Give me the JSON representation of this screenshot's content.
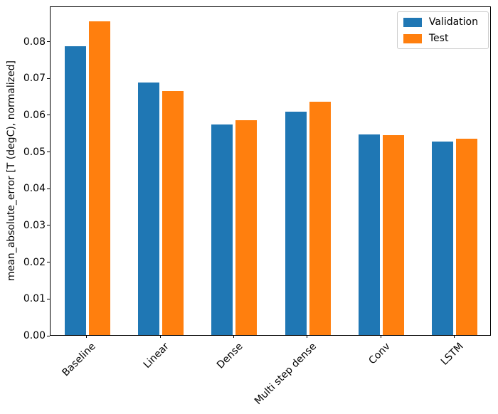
{
  "chart_data": {
    "type": "bar",
    "title": "",
    "xlabel": "",
    "ylabel": "mean_absolute_error [T (degC), normalized]",
    "categories": [
      "Baseline",
      "Linear",
      "Dense",
      "Multi step dense",
      "Conv",
      "LSTM"
    ],
    "series": [
      {
        "name": "Validation",
        "color": "#1f77b4",
        "values": [
          0.0786,
          0.0687,
          0.0573,
          0.0608,
          0.0546,
          0.0526
        ]
      },
      {
        "name": "Test",
        "color": "#ff7f0e",
        "values": [
          0.0854,
          0.0663,
          0.0584,
          0.0635,
          0.0544,
          0.0535
        ]
      }
    ],
    "ylim": [
      0,
      0.0896
    ],
    "yticks": [
      {
        "value": 0.0,
        "label": "0.00"
      },
      {
        "value": 0.01,
        "label": "0.01"
      },
      {
        "value": 0.02,
        "label": "0.02"
      },
      {
        "value": 0.03,
        "label": "0.03"
      },
      {
        "value": 0.04,
        "label": "0.04"
      },
      {
        "value": 0.05,
        "label": "0.05"
      },
      {
        "value": 0.06,
        "label": "0.06"
      },
      {
        "value": 0.07,
        "label": "0.07"
      },
      {
        "value": 0.08,
        "label": "0.08"
      }
    ],
    "grid": false,
    "legend_position": "upper right",
    "legend": [
      "Validation",
      "Test"
    ]
  }
}
